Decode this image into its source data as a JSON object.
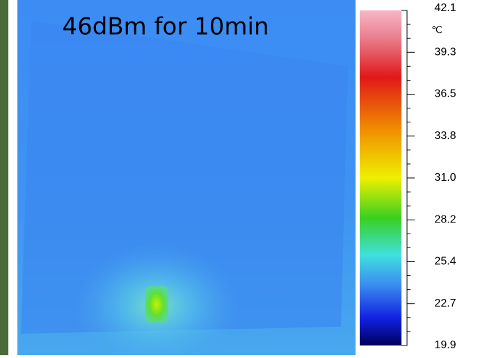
{
  "title": "46dBm for 10min",
  "colorbar": {
    "unit": "℃",
    "ticks": [
      "42.1",
      "39.3",
      "36.5",
      "33.8",
      "31.0",
      "28.2",
      "25.4",
      "22.7",
      "19.9"
    ]
  }
}
